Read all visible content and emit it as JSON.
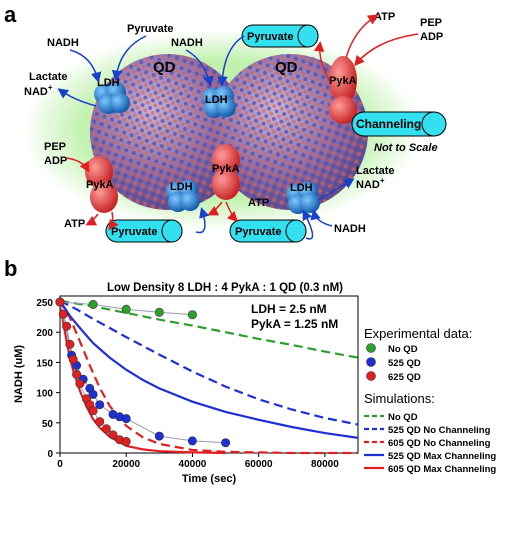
{
  "panel_a": {
    "panel_label": "a",
    "qd_labels": [
      "QD",
      "QD"
    ],
    "nadh_labels": [
      "NADH",
      "NADH",
      "NADH"
    ],
    "pyruvate_label": "Pyruvate",
    "lactate_label": "Lactate",
    "nad_label": "NAD",
    "nad_superscript": "+",
    "pep_label": "PEP",
    "adp_label": "ADP",
    "atp_label": "ATP",
    "ldh_label": "LDH",
    "pyka_label": "PykA",
    "pyruvate_capsule_label": "Pyruvate",
    "channeling_label": "Channeling",
    "not_to_scale": "Not to Scale"
  },
  "panel_b": {
    "panel_label": "b"
  },
  "chart_data": {
    "type": "scatter",
    "title": "Low Density 8 LDH : 4 PykA : 1 QD (0.3 nM)",
    "xlabel": "Time (sec)",
    "ylabel": "NADH (uM)",
    "xlim": [
      0,
      90000
    ],
    "ylim": [
      0,
      260
    ],
    "xticks": [
      0,
      20000,
      40000,
      60000,
      80000
    ],
    "yticks": [
      0,
      50,
      100,
      150,
      200,
      250
    ],
    "annotations": [
      "LDH =   2.5 nM",
      "PykA = 1.25 nM"
    ],
    "legend_title_experimental": "Experimental data:",
    "legend_title_simulations": "Simulations:",
    "grid": false,
    "experimental": [
      {
        "name": "No QD",
        "color": "#2ca02c",
        "x": [
          0,
          10000,
          20000,
          30000,
          40000
        ],
        "y": [
          250,
          246,
          238,
          233,
          229
        ]
      },
      {
        "name": "525 QD",
        "color": "#1f2fd6",
        "x": [
          0,
          3500,
          5000,
          7000,
          9000,
          10000,
          12000,
          16000,
          18000,
          20000,
          30000,
          40000,
          50000
        ],
        "y": [
          250,
          162,
          145,
          122,
          107,
          97,
          80,
          64,
          60,
          57,
          28,
          20,
          17
        ]
      },
      {
        "name": "625 QD",
        "color": "#e02020",
        "x": [
          0,
          1000,
          2000,
          3000,
          4000,
          5000,
          6000,
          8000,
          9000,
          10000,
          12000,
          14000,
          16000,
          18000,
          20000
        ],
        "y": [
          250,
          230,
          210,
          180,
          155,
          130,
          115,
          90,
          80,
          70,
          52,
          40,
          30,
          22,
          19
        ]
      }
    ],
    "simulations": [
      {
        "name": "No QD",
        "color": "#2ca02c",
        "dash": true,
        "x": [
          0,
          10000,
          20000,
          30000,
          40000,
          50000,
          60000,
          70000,
          80000,
          90000
        ],
        "y": [
          252,
          243,
          232,
          221,
          211,
          200,
          189,
          179,
          168,
          158
        ]
      },
      {
        "name": "525 QD No Channeling",
        "color": "#1f2fd6",
        "dash": true,
        "x": [
          0,
          5000,
          10000,
          15000,
          20000,
          30000,
          40000,
          50000,
          60000,
          70000,
          80000,
          90000
        ],
        "y": [
          252,
          238,
          222,
          207,
          192,
          163,
          135,
          110,
          89,
          72,
          58,
          47
        ]
      },
      {
        "name": "605 QD No Channeling",
        "color": "#e02020",
        "dash": true,
        "x": [
          0,
          3000,
          6000,
          9000,
          12000,
          15000,
          20000,
          25000,
          30000,
          40000,
          50000,
          60000,
          70000,
          90000
        ],
        "y": [
          252,
          224,
          185,
          145,
          108,
          78,
          45,
          26,
          15,
          5,
          2,
          1,
          0,
          0
        ]
      },
      {
        "name": "525 QD Max Channeling",
        "color": "#1f2fd6",
        "dash": false,
        "x": [
          0,
          3000,
          6000,
          10000,
          15000,
          20000,
          25000,
          30000,
          40000,
          50000,
          60000,
          70000,
          80000,
          90000
        ],
        "y": [
          252,
          227,
          207,
          182,
          158,
          138,
          121,
          107,
          85,
          68,
          55,
          43,
          33,
          25
        ]
      },
      {
        "name": "605 QD Max Channeling",
        "color": "#e02020",
        "dash": false,
        "x": [
          0,
          1000,
          2000,
          3000,
          4000,
          6000,
          8000,
          10000,
          12000,
          15000,
          20000,
          25000,
          30000,
          40000,
          50000
        ],
        "y": [
          252,
          215,
          185,
          158,
          137,
          103,
          77,
          56,
          42,
          27,
          12,
          6,
          3,
          1,
          0
        ]
      }
    ]
  }
}
